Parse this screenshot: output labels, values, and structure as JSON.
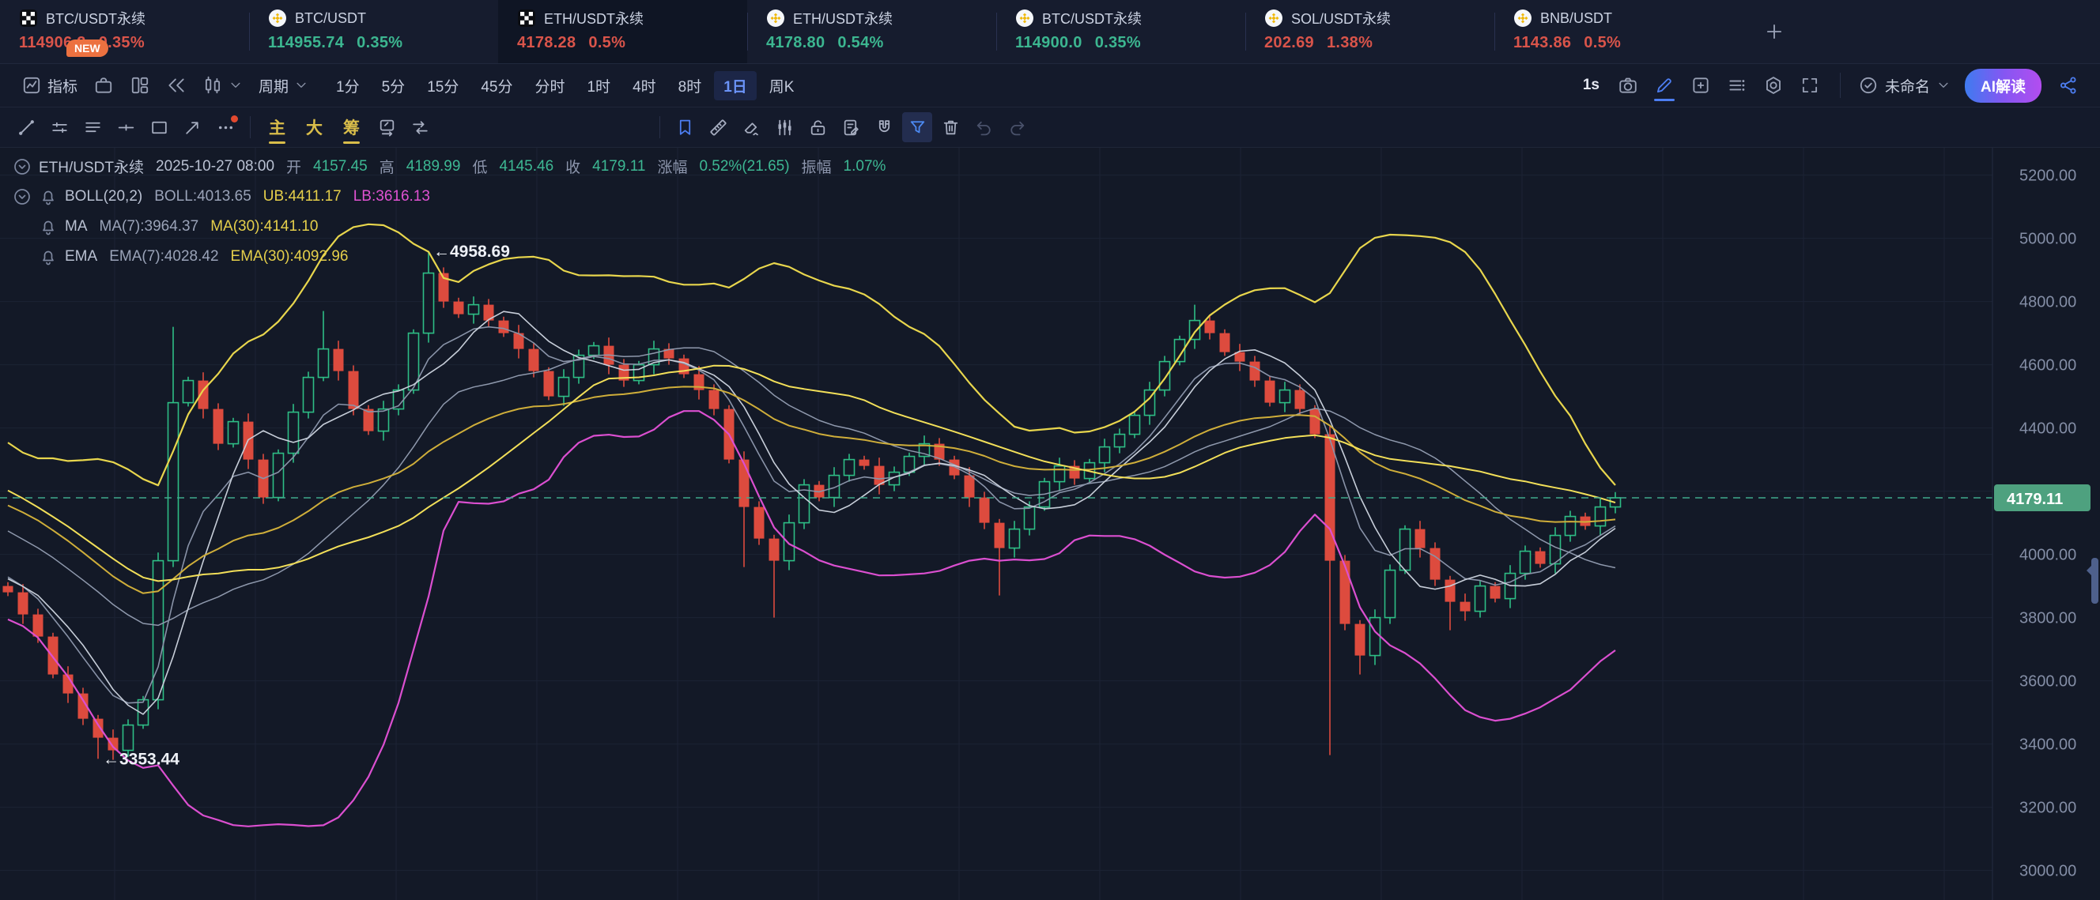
{
  "colors": {
    "background": "#131927",
    "panel": "#161c2e",
    "grid": "#1c2334",
    "up": "#2ebd85",
    "down": "#dd4b3e",
    "accent_blue": "#4d7ef2",
    "yellow": "#e5cf4b",
    "magenta": "#db4fd0",
    "orange_badge": "#ec7140",
    "price_tag": "#4ea17f",
    "axis_text": "#848ea6"
  },
  "tabbar": {
    "add_button": {
      "icon": "plus"
    },
    "tabs": [
      {
        "icon": "okx",
        "name": "BTC/USDT永续",
        "price": "114906.2",
        "change": "0.35%",
        "dir": "down",
        "active": false,
        "badge": "NEW"
      },
      {
        "icon": "binance",
        "name": "BTC/USDT",
        "price": "114955.74",
        "change": "0.35%",
        "dir": "up",
        "active": false
      },
      {
        "icon": "okx",
        "name": "ETH/USDT永续",
        "price": "4178.28",
        "change": "0.5%",
        "dir": "down",
        "active": true
      },
      {
        "icon": "binance",
        "name": "ETH/USDT永续",
        "price": "4178.80",
        "change": "0.54%",
        "dir": "up",
        "active": false
      },
      {
        "icon": "binance",
        "name": "BTC/USDT永续",
        "price": "114900.0",
        "change": "0.35%",
        "dir": "up",
        "active": false
      },
      {
        "icon": "binance",
        "name": "SOL/USDT永续",
        "price": "202.69",
        "change": "1.38%",
        "dir": "down",
        "active": false
      },
      {
        "icon": "binance",
        "name": "BNB/USDT",
        "price": "1143.86",
        "change": "0.5%",
        "dir": "down",
        "active": false
      }
    ]
  },
  "toolbar": {
    "indicator_label": "指标",
    "indicator_icon": "chartbox",
    "left_icons": [
      {
        "name": "strategy-bag",
        "icon": "briefcase"
      },
      {
        "name": "split-layout",
        "icon": "layout"
      },
      {
        "name": "replay-rewind",
        "icon": "rewind"
      },
      {
        "name": "candle-style",
        "icon": "candle",
        "chevron": true
      }
    ],
    "period_label": "周期",
    "periods": [
      "1分",
      "5分",
      "15分",
      "45分",
      "分时",
      "1时",
      "4时",
      "8时",
      "1日",
      "周K"
    ],
    "active_period": "1日",
    "right": {
      "interval": "1s",
      "icons": [
        {
          "name": "screenshot",
          "icon": "camera"
        },
        {
          "name": "draw-pencil",
          "icon": "pencil",
          "accent": true,
          "underline": true
        },
        {
          "name": "add-pane",
          "icon": "addpane"
        },
        {
          "name": "object-list",
          "icon": "listlines"
        },
        {
          "name": "chart-settings",
          "icon": "hexgear"
        },
        {
          "name": "fullscreen",
          "icon": "expand"
        }
      ],
      "workspace_icon": "cloudcheck",
      "workspace_label": "未命名",
      "ai_button": "AI解读",
      "share_icon": "share"
    }
  },
  "drawbar": {
    "tools_left": [
      {
        "name": "trend-line",
        "icon": "trendline"
      },
      {
        "name": "parallel-channel",
        "icon": "parallel"
      },
      {
        "name": "parallel-lines",
        "icon": "parallel2"
      },
      {
        "name": "horizontal-line",
        "icon": "hline"
      },
      {
        "name": "rectangle-tool",
        "icon": "recttool"
      },
      {
        "name": "arrow-tool",
        "icon": "arrowtool"
      },
      {
        "name": "more-tools",
        "icon": "more",
        "badge": true
      }
    ],
    "modes": [
      {
        "label": "主",
        "active": true
      },
      {
        "label": "大",
        "active": false
      },
      {
        "label": "筹",
        "active": true
      }
    ],
    "tools_mid": [
      {
        "name": "template-edit",
        "icon": "templedit"
      },
      {
        "name": "compare-tool",
        "icon": "compare"
      }
    ],
    "tools_right": [
      {
        "name": "bookmark",
        "icon": "bookmark",
        "accent": true
      },
      {
        "name": "ruler",
        "icon": "ruler"
      },
      {
        "name": "eraser",
        "icon": "eraser"
      },
      {
        "name": "compare-candles",
        "icon": "cmpcandles"
      },
      {
        "name": "unlock",
        "icon": "unlock"
      },
      {
        "name": "order-note",
        "icon": "ordernote"
      },
      {
        "name": "magnet-mode",
        "icon": "magnet"
      },
      {
        "name": "filter",
        "icon": "funnel",
        "highlight": true
      },
      {
        "name": "delete-drawings",
        "icon": "trash"
      },
      {
        "name": "undo",
        "icon": "undo",
        "disabled": true
      },
      {
        "name": "redo",
        "icon": "redo",
        "disabled": true
      }
    ]
  },
  "legend": {
    "rows": [
      {
        "icons": [
          "chevC"
        ],
        "parts": [
          {
            "t": "ETH/USDT永续",
            "c": "label"
          },
          {
            "t": "2025-10-27 08:00",
            "c": "label"
          },
          {
            "t": "开",
            "c": "dim"
          },
          {
            "t": "4157.45",
            "c": "green"
          },
          {
            "t": "高",
            "c": "dim"
          },
          {
            "t": "4189.99",
            "c": "green"
          },
          {
            "t": "低",
            "c": "dim"
          },
          {
            "t": "4145.46",
            "c": "green"
          },
          {
            "t": "收",
            "c": "dim"
          },
          {
            "t": "4179.11",
            "c": "green"
          },
          {
            "t": "涨幅",
            "c": "dim"
          },
          {
            "t": "0.52%(21.65)",
            "c": "green"
          },
          {
            "t": "振幅",
            "c": "dim"
          },
          {
            "t": "1.07%",
            "c": "green"
          }
        ]
      },
      {
        "icons": [
          "chevC",
          "bell"
        ],
        "parts": [
          {
            "t": "BOLL(20,2)",
            "c": "label"
          },
          {
            "t": "BOLL:4013.65",
            "c": "dim2"
          },
          {
            "t": "UB:4411.17",
            "c": "yellow"
          },
          {
            "t": "LB:3616.13",
            "c": "magenta"
          }
        ]
      },
      {
        "icons": [
          "bell"
        ],
        "indent": true,
        "parts": [
          {
            "t": "MA",
            "c": "label"
          },
          {
            "t": "MA(7):3964.37",
            "c": "dim2"
          },
          {
            "t": "MA(30):4141.10",
            "c": "yellow"
          }
        ]
      },
      {
        "icons": [
          "bell"
        ],
        "indent": true,
        "parts": [
          {
            "t": "EMA",
            "c": "label"
          },
          {
            "t": "EMA(7):4028.42",
            "c": "dim2"
          },
          {
            "t": "EMA(30):4092.96",
            "c": "yellow"
          }
        ]
      }
    ]
  },
  "axis": {
    "tick_labels": [
      "5200.00",
      "5000.00",
      "4800.00",
      "4600.00",
      "4400.00",
      "4000.00",
      "3800.00",
      "3600.00",
      "3400.00",
      "3200.00",
      "3000.00"
    ],
    "price_tag": "4179.11"
  },
  "chart_data": {
    "type": "candlestick",
    "symbol": "ETH/USDT永续",
    "interval": "1日",
    "last_price": 4179.11,
    "y_axis": {
      "tick_prices": [
        5200,
        5000,
        4800,
        4600,
        4400,
        4200,
        4000,
        3800,
        3600,
        3400,
        3200,
        3000
      ],
      "visible_range": [
        2930,
        5300
      ]
    },
    "annotations": [
      {
        "text": "4958.69",
        "arrow": "←",
        "price": 4958.69,
        "candle_index": 28
      },
      {
        "text": "3353.44",
        "arrow": "←",
        "price": 3353.44,
        "candle_index": 6
      }
    ],
    "indicators": {
      "boll": {
        "period": 20,
        "mult": 2
      },
      "ma": [
        7,
        30
      ],
      "ema": [
        7,
        30
      ]
    },
    "pre_closes": [
      4600,
      4560,
      4580,
      4520,
      4480,
      4500,
      4440,
      4400,
      4420,
      4360,
      4320,
      4340,
      4280,
      4240,
      4260,
      4200,
      4160,
      4180,
      4120,
      4080,
      4100,
      4040,
      4000,
      4020,
      3980,
      3940,
      3960,
      3920,
      3880,
      3900
    ],
    "closes": [
      3880,
      3810,
      3740,
      3620,
      3560,
      3480,
      3420,
      3380,
      3460,
      3540,
      3980,
      4480,
      4550,
      4460,
      4350,
      4420,
      4300,
      4180,
      4320,
      4450,
      4560,
      4650,
      4580,
      4460,
      4390,
      4460,
      4520,
      4700,
      4890,
      4800,
      4760,
      4790,
      4740,
      4700,
      4650,
      4580,
      4500,
      4560,
      4630,
      4660,
      4600,
      4550,
      4600,
      4650,
      4620,
      4570,
      4520,
      4460,
      4300,
      4150,
      4050,
      3980,
      4100,
      4220,
      4180,
      4250,
      4300,
      4280,
      4220,
      4260,
      4310,
      4350,
      4300,
      4250,
      4180,
      4100,
      4020,
      4080,
      4150,
      4230,
      4280,
      4240,
      4290,
      4340,
      4380,
      4440,
      4520,
      4610,
      4680,
      4740,
      4700,
      4640,
      4610,
      4550,
      4480,
      4520,
      4460,
      4380,
      3980,
      3780,
      3680,
      3800,
      3950,
      4080,
      4020,
      3920,
      3850,
      3820,
      3900,
      3860,
      3940,
      4010,
      3970,
      4060,
      4120,
      4090,
      4150,
      4179.11
    ],
    "wick_highs": {
      "11": 4720,
      "21": 4770,
      "28": 4958.69,
      "79": 4790
    },
    "wick_lows": {
      "6": 3353.44,
      "49": 3960,
      "51": 3800,
      "66": 3870,
      "88": 3365,
      "90": 3620,
      "96": 3760
    },
    "line_colors": {
      "ub": "#e8d64d",
      "lb": "#db4fd0",
      "mid": "#8f99ad",
      "ma7": "#c7ced9",
      "ma30": "#f2df59",
      "ema7": "#8993a8",
      "ema30": "#cfae3a",
      "price_line": "#3fa98c"
    }
  }
}
